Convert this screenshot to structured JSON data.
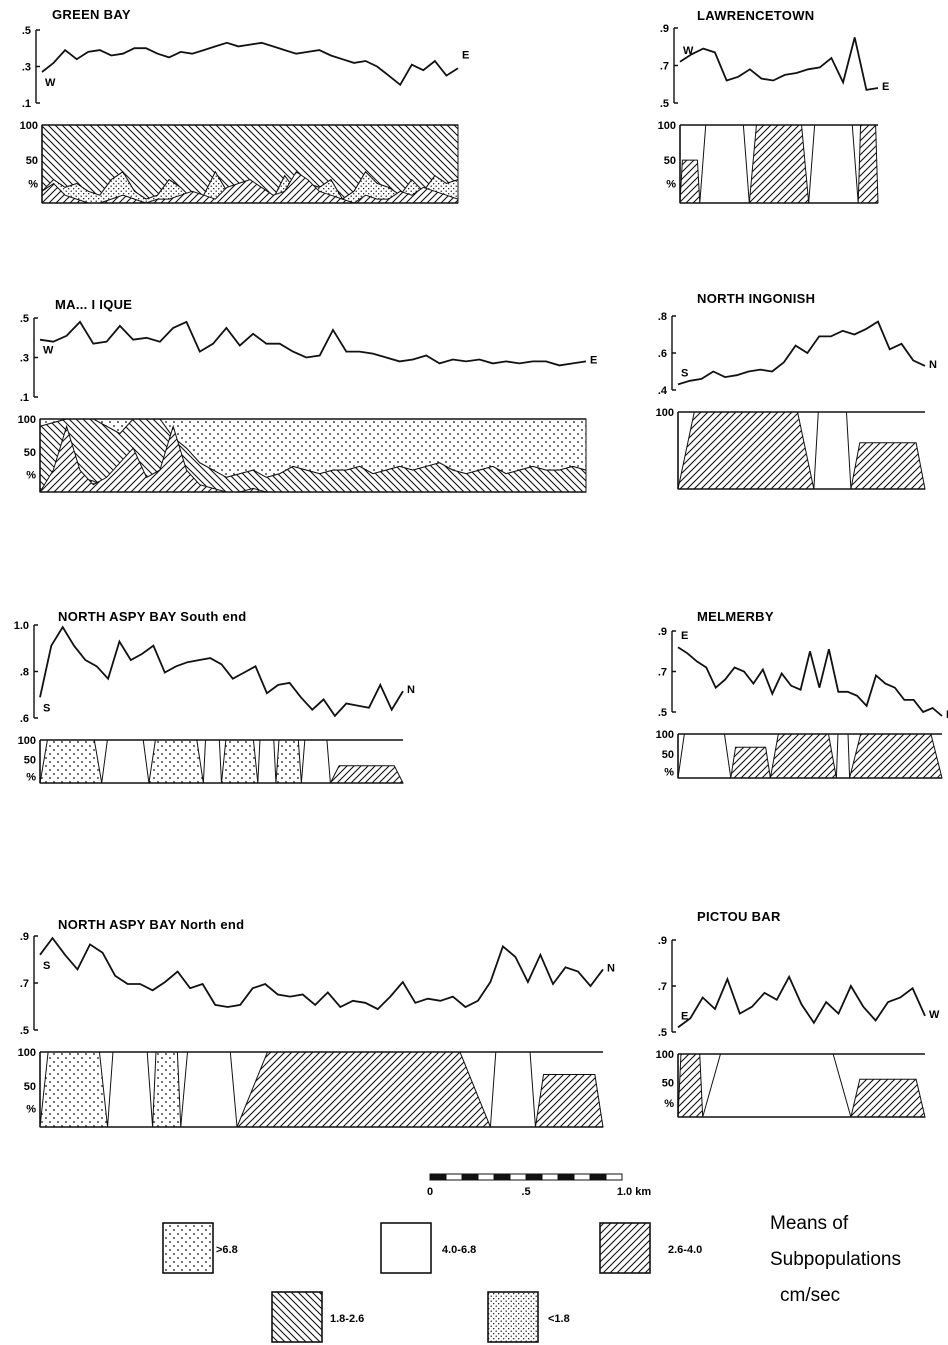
{
  "figure": {
    "legend": {
      "items": [
        {
          "key": "dots_coarse",
          "label": ">6.8"
        },
        {
          "key": "white",
          "label": "4.0-6.8"
        },
        {
          "key": "hatch_fwd",
          "label": "2.6-4.0"
        },
        {
          "key": "hatch_back",
          "label": "1.8-2.6"
        },
        {
          "key": "dots_fine",
          "label": "<1.8"
        }
      ],
      "caption": [
        "Means of",
        "Subpopulations",
        "cm/sec"
      ]
    },
    "scale_bar": {
      "ticks": [
        "0",
        ".5",
        "1.0 km"
      ]
    }
  },
  "chart_data": [
    {
      "type": "line",
      "title": "GREEN BAY",
      "y_ticks": [
        ".5",
        ".3",
        ".1"
      ],
      "ylim": [
        0.1,
        0.5
      ],
      "start_label": "W",
      "end_label": "E",
      "line": [
        0.27,
        0.32,
        0.39,
        0.34,
        0.38,
        0.39,
        0.36,
        0.37,
        0.4,
        0.4,
        0.37,
        0.35,
        0.38,
        0.37,
        0.39,
        0.41,
        0.43,
        0.41,
        0.42,
        0.43,
        0.41,
        0.39,
        0.37,
        0.38,
        0.39,
        0.36,
        0.34,
        0.32,
        0.33,
        0.3,
        0.25,
        0.2,
        0.31,
        0.28,
        0.33,
        0.25,
        0.29
      ],
      "pct_axis": [
        "100",
        "50",
        "%"
      ],
      "composition": {
        "layers": [
          "dots_coarse",
          "hatch_back",
          "dots_fine"
        ],
        "values": [
          [
            0,
            0,
            0,
            0,
            0,
            0,
            0,
            0,
            0,
            0,
            0,
            0,
            0,
            0,
            0,
            0,
            0,
            0,
            0,
            0,
            0,
            0,
            0,
            0,
            0,
            0,
            0,
            0,
            0,
            0,
            0,
            0,
            0,
            0,
            0,
            0,
            0
          ],
          [
            85,
            70,
            80,
            75,
            85,
            90,
            70,
            60,
            85,
            95,
            90,
            70,
            80,
            95,
            90,
            60,
            85,
            90,
            75,
            85,
            95,
            65,
            85,
            75,
            80,
            70,
            95,
            85,
            60,
            75,
            80,
            90,
            70,
            85,
            65,
            75,
            70
          ],
          [
            15,
            30,
            20,
            25,
            15,
            10,
            30,
            40,
            15,
            5,
            10,
            30,
            20,
            5,
            10,
            40,
            15,
            10,
            25,
            15,
            5,
            35,
            15,
            25,
            20,
            30,
            5,
            15,
            40,
            25,
            20,
            10,
            30,
            15,
            35,
            25,
            30
          ]
        ],
        "bottom_layer": "hatch_fwd",
        "bottom": [
          15,
          25,
          10,
          5,
          0,
          0,
          5,
          10,
          5,
          0,
          5,
          5,
          10,
          15,
          10,
          5,
          20,
          25,
          30,
          20,
          10,
          15,
          40,
          30,
          15,
          10,
          5,
          0,
          10,
          5,
          5,
          15,
          10,
          20,
          15,
          10,
          5
        ]
      }
    },
    {
      "type": "line",
      "title": "LAWRENCETOWN",
      "y_ticks": [
        ".9",
        ".7",
        ".5"
      ],
      "ylim": [
        0.5,
        0.9
      ],
      "start_label": "W",
      "end_label": "E",
      "line": [
        0.72,
        0.76,
        0.79,
        0.77,
        0.62,
        0.64,
        0.68,
        0.63,
        0.62,
        0.65,
        0.66,
        0.68,
        0.69,
        0.74,
        0.61,
        0.85,
        0.57,
        0.58
      ],
      "pct_axis": [
        "100",
        "50",
        "%"
      ],
      "composition_blocks": [
        {
          "from": 0,
          "to": 0.1,
          "layer": "hatch_fwd",
          "top": 55
        },
        {
          "from": 0.1,
          "to": 0.35,
          "layer": "white"
        },
        {
          "from": 0.35,
          "to": 0.65,
          "layer": "hatch_fwd"
        },
        {
          "from": 0.65,
          "to": 0.9,
          "layer": "white"
        },
        {
          "from": 0.9,
          "to": 1.0,
          "layer": "hatch_fwd"
        }
      ]
    },
    {
      "type": "line",
      "title": "MA... I IQUE",
      "y_ticks": [
        ".5",
        ".3",
        ".1"
      ],
      "ylim": [
        0.1,
        0.5
      ],
      "start_label": "W",
      "end_label": "E",
      "line": [
        0.39,
        0.38,
        0.41,
        0.48,
        0.37,
        0.38,
        0.46,
        0.39,
        0.4,
        0.38,
        0.45,
        0.48,
        0.33,
        0.37,
        0.45,
        0.36,
        0.42,
        0.37,
        0.37,
        0.33,
        0.3,
        0.31,
        0.44,
        0.33,
        0.33,
        0.32,
        0.3,
        0.28,
        0.29,
        0.31,
        0.27,
        0.29,
        0.28,
        0.29,
        0.27,
        0.28,
        0.27,
        0.28,
        0.28,
        0.26,
        0.27,
        0.28
      ],
      "pct_axis": [
        "100",
        "50",
        "%"
      ],
      "composition": {
        "layers": [
          "dots_coarse",
          "hatch_back",
          "dots_fine"
        ],
        "values": [
          [
            10,
            5,
            0,
            0,
            0,
            10,
            20,
            0,
            0,
            0,
            25,
            40,
            60,
            70,
            80,
            75,
            70,
            80,
            75,
            65,
            70,
            75,
            70,
            70,
            65,
            75,
            70,
            65,
            70,
            65,
            60,
            70,
            75,
            70,
            65,
            75,
            70,
            65,
            70,
            70,
            65,
            70
          ],
          [
            90,
            95,
            95,
            80,
            85,
            85,
            75,
            95,
            90,
            90,
            70,
            60,
            40,
            30,
            20,
            25,
            30,
            20,
            25,
            35,
            30,
            25,
            30,
            30,
            35,
            25,
            30,
            35,
            30,
            35,
            40,
            30,
            25,
            30,
            35,
            25,
            30,
            35,
            30,
            30,
            35,
            30
          ],
          [
            0,
            0,
            5,
            20,
            15,
            5,
            5,
            5,
            10,
            10,
            5,
            0,
            0,
            0,
            0,
            0,
            0,
            0,
            0,
            0,
            0,
            0,
            0,
            0,
            0,
            0,
            0,
            0,
            0,
            0,
            0,
            0,
            0,
            0,
            0,
            0,
            0,
            0,
            0,
            0,
            0,
            0
          ]
        ],
        "bottom_layer": "hatch_fwd",
        "bottom": [
          0,
          30,
          90,
          30,
          10,
          20,
          40,
          60,
          20,
          30,
          90,
          30,
          10,
          5,
          0,
          0,
          5,
          0,
          0,
          0,
          0,
          0,
          0,
          0,
          0,
          0,
          0,
          0,
          0,
          0,
          0,
          0,
          0,
          0,
          0,
          0,
          0,
          0,
          0,
          0,
          0,
          0
        ]
      }
    },
    {
      "type": "line",
      "title": "NORTH INGONISH",
      "y_ticks": [
        ".8",
        ".6",
        ".4"
      ],
      "ylim": [
        0.4,
        0.8
      ],
      "start_label": "S",
      "end_label": "N",
      "line": [
        0.43,
        0.45,
        0.46,
        0.5,
        0.47,
        0.48,
        0.5,
        0.51,
        0.5,
        0.55,
        0.64,
        0.6,
        0.69,
        0.69,
        0.72,
        0.7,
        0.73,
        0.77,
        0.62,
        0.65,
        0.56,
        0.53
      ],
      "pct_axis": [
        "100"
      ],
      "composition_blocks": [
        {
          "from": 0,
          "to": 0.55,
          "layer": "hatch_fwd"
        },
        {
          "from": 0.55,
          "to": 0.7,
          "layer": "white"
        },
        {
          "from": 0.7,
          "to": 1.0,
          "layer": "hatch_fwd",
          "top": 60
        }
      ]
    },
    {
      "type": "line",
      "title": "NORTH ASPY BAY South end",
      "y_ticks": [
        "1.0",
        ".8",
        ".6"
      ],
      "ylim": [
        0.6,
        1.05
      ],
      "start_label": "S",
      "end_label": "N",
      "line": [
        0.7,
        0.95,
        1.04,
        0.95,
        0.88,
        0.85,
        0.79,
        0.97,
        0.88,
        0.91,
        0.95,
        0.82,
        0.85,
        0.87,
        0.88,
        0.89,
        0.86,
        0.79,
        0.82,
        0.85,
        0.72,
        0.76,
        0.77,
        0.7,
        0.64,
        0.69,
        0.61,
        0.67,
        0.66,
        0.65,
        0.76,
        0.64,
        0.73
      ],
      "pct_axis": [
        "100",
        "50",
        "%"
      ],
      "composition_blocks": [
        {
          "from": 0,
          "to": 0.17,
          "layer": "dots_coarse"
        },
        {
          "from": 0.17,
          "to": 0.3,
          "layer": "white"
        },
        {
          "from": 0.3,
          "to": 0.45,
          "layer": "dots_coarse"
        },
        {
          "from": 0.45,
          "to": 0.5,
          "layer": "white"
        },
        {
          "from": 0.5,
          "to": 0.6,
          "layer": "dots_coarse"
        },
        {
          "from": 0.6,
          "to": 0.65,
          "layer": "white"
        },
        {
          "from": 0.65,
          "to": 0.72,
          "layer": "dots_coarse"
        },
        {
          "from": 0.72,
          "to": 0.8,
          "layer": "white"
        },
        {
          "from": 0.8,
          "to": 1.0,
          "layer": "hatch_fwd",
          "top": 40
        }
      ]
    },
    {
      "type": "line",
      "title": "MELMERBY",
      "y_ticks": [
        ".9",
        ".7",
        ".5"
      ],
      "ylim": [
        0.5,
        0.9
      ],
      "start_label": "E",
      "end_label": "N",
      "line": [
        0.82,
        0.79,
        0.75,
        0.72,
        0.62,
        0.66,
        0.72,
        0.7,
        0.64,
        0.71,
        0.59,
        0.69,
        0.63,
        0.61,
        0.8,
        0.62,
        0.81,
        0.6,
        0.6,
        0.58,
        0.53,
        0.68,
        0.64,
        0.62,
        0.56,
        0.56,
        0.5,
        0.52,
        0.48
      ],
      "pct_axis": [
        "100",
        "50",
        "%"
      ],
      "composition_blocks": [
        {
          "from": 0,
          "to": 0.2,
          "layer": "white"
        },
        {
          "from": 0.2,
          "to": 0.35,
          "layer": "hatch_fwd",
          "top": 70
        },
        {
          "from": 0.35,
          "to": 0.6,
          "layer": "hatch_fwd"
        },
        {
          "from": 0.6,
          "to": 0.65,
          "layer": "white"
        },
        {
          "from": 0.65,
          "to": 1.0,
          "layer": "hatch_fwd"
        }
      ]
    },
    {
      "type": "line",
      "title": "NORTH ASPY BAY North end",
      "y_ticks": [
        ".9",
        ".7",
        ".5"
      ],
      "ylim": [
        0.5,
        0.95
      ],
      "start_label": "S",
      "end_label": "N",
      "line": [
        0.86,
        0.94,
        0.86,
        0.79,
        0.91,
        0.87,
        0.76,
        0.72,
        0.72,
        0.69,
        0.73,
        0.78,
        0.7,
        0.72,
        0.62,
        0.61,
        0.62,
        0.7,
        0.72,
        0.67,
        0.66,
        0.67,
        0.62,
        0.68,
        0.61,
        0.64,
        0.63,
        0.6,
        0.66,
        0.73,
        0.63,
        0.65,
        0.64,
        0.66,
        0.61,
        0.64,
        0.73,
        0.9,
        0.85,
        0.73,
        0.86,
        0.72,
        0.8,
        0.78,
        0.71,
        0.79
      ],
      "pct_axis": [
        "100",
        "50",
        "%"
      ],
      "composition_blocks": [
        {
          "from": 0,
          "to": 0.12,
          "layer": "dots_coarse"
        },
        {
          "from": 0.12,
          "to": 0.2,
          "layer": "white"
        },
        {
          "from": 0.2,
          "to": 0.25,
          "layer": "dots_coarse"
        },
        {
          "from": 0.25,
          "to": 0.35,
          "layer": "white"
        },
        {
          "from": 0.35,
          "to": 0.8,
          "layer": "hatch_fwd"
        },
        {
          "from": 0.8,
          "to": 0.88,
          "layer": "white"
        },
        {
          "from": 0.88,
          "to": 1.0,
          "layer": "hatch_fwd",
          "top": 70
        }
      ]
    },
    {
      "type": "line",
      "title": "PICTOU BAR",
      "y_ticks": [
        ".9",
        ".7",
        ".5"
      ],
      "ylim": [
        0.5,
        0.9
      ],
      "start_label": "E",
      "end_label": "W",
      "line": [
        0.52,
        0.56,
        0.65,
        0.6,
        0.73,
        0.58,
        0.61,
        0.67,
        0.64,
        0.74,
        0.62,
        0.54,
        0.63,
        0.58,
        0.7,
        0.61,
        0.55,
        0.63,
        0.65,
        0.69,
        0.57
      ],
      "pct_axis": [
        "100",
        "50",
        "%"
      ],
      "composition_blocks": [
        {
          "from": 0,
          "to": 0.1,
          "layer": "hatch_fwd"
        },
        {
          "from": 0.1,
          "to": 0.7,
          "layer": "white"
        },
        {
          "from": 0.7,
          "to": 1.0,
          "layer": "hatch_fwd",
          "top": 60
        }
      ]
    }
  ]
}
